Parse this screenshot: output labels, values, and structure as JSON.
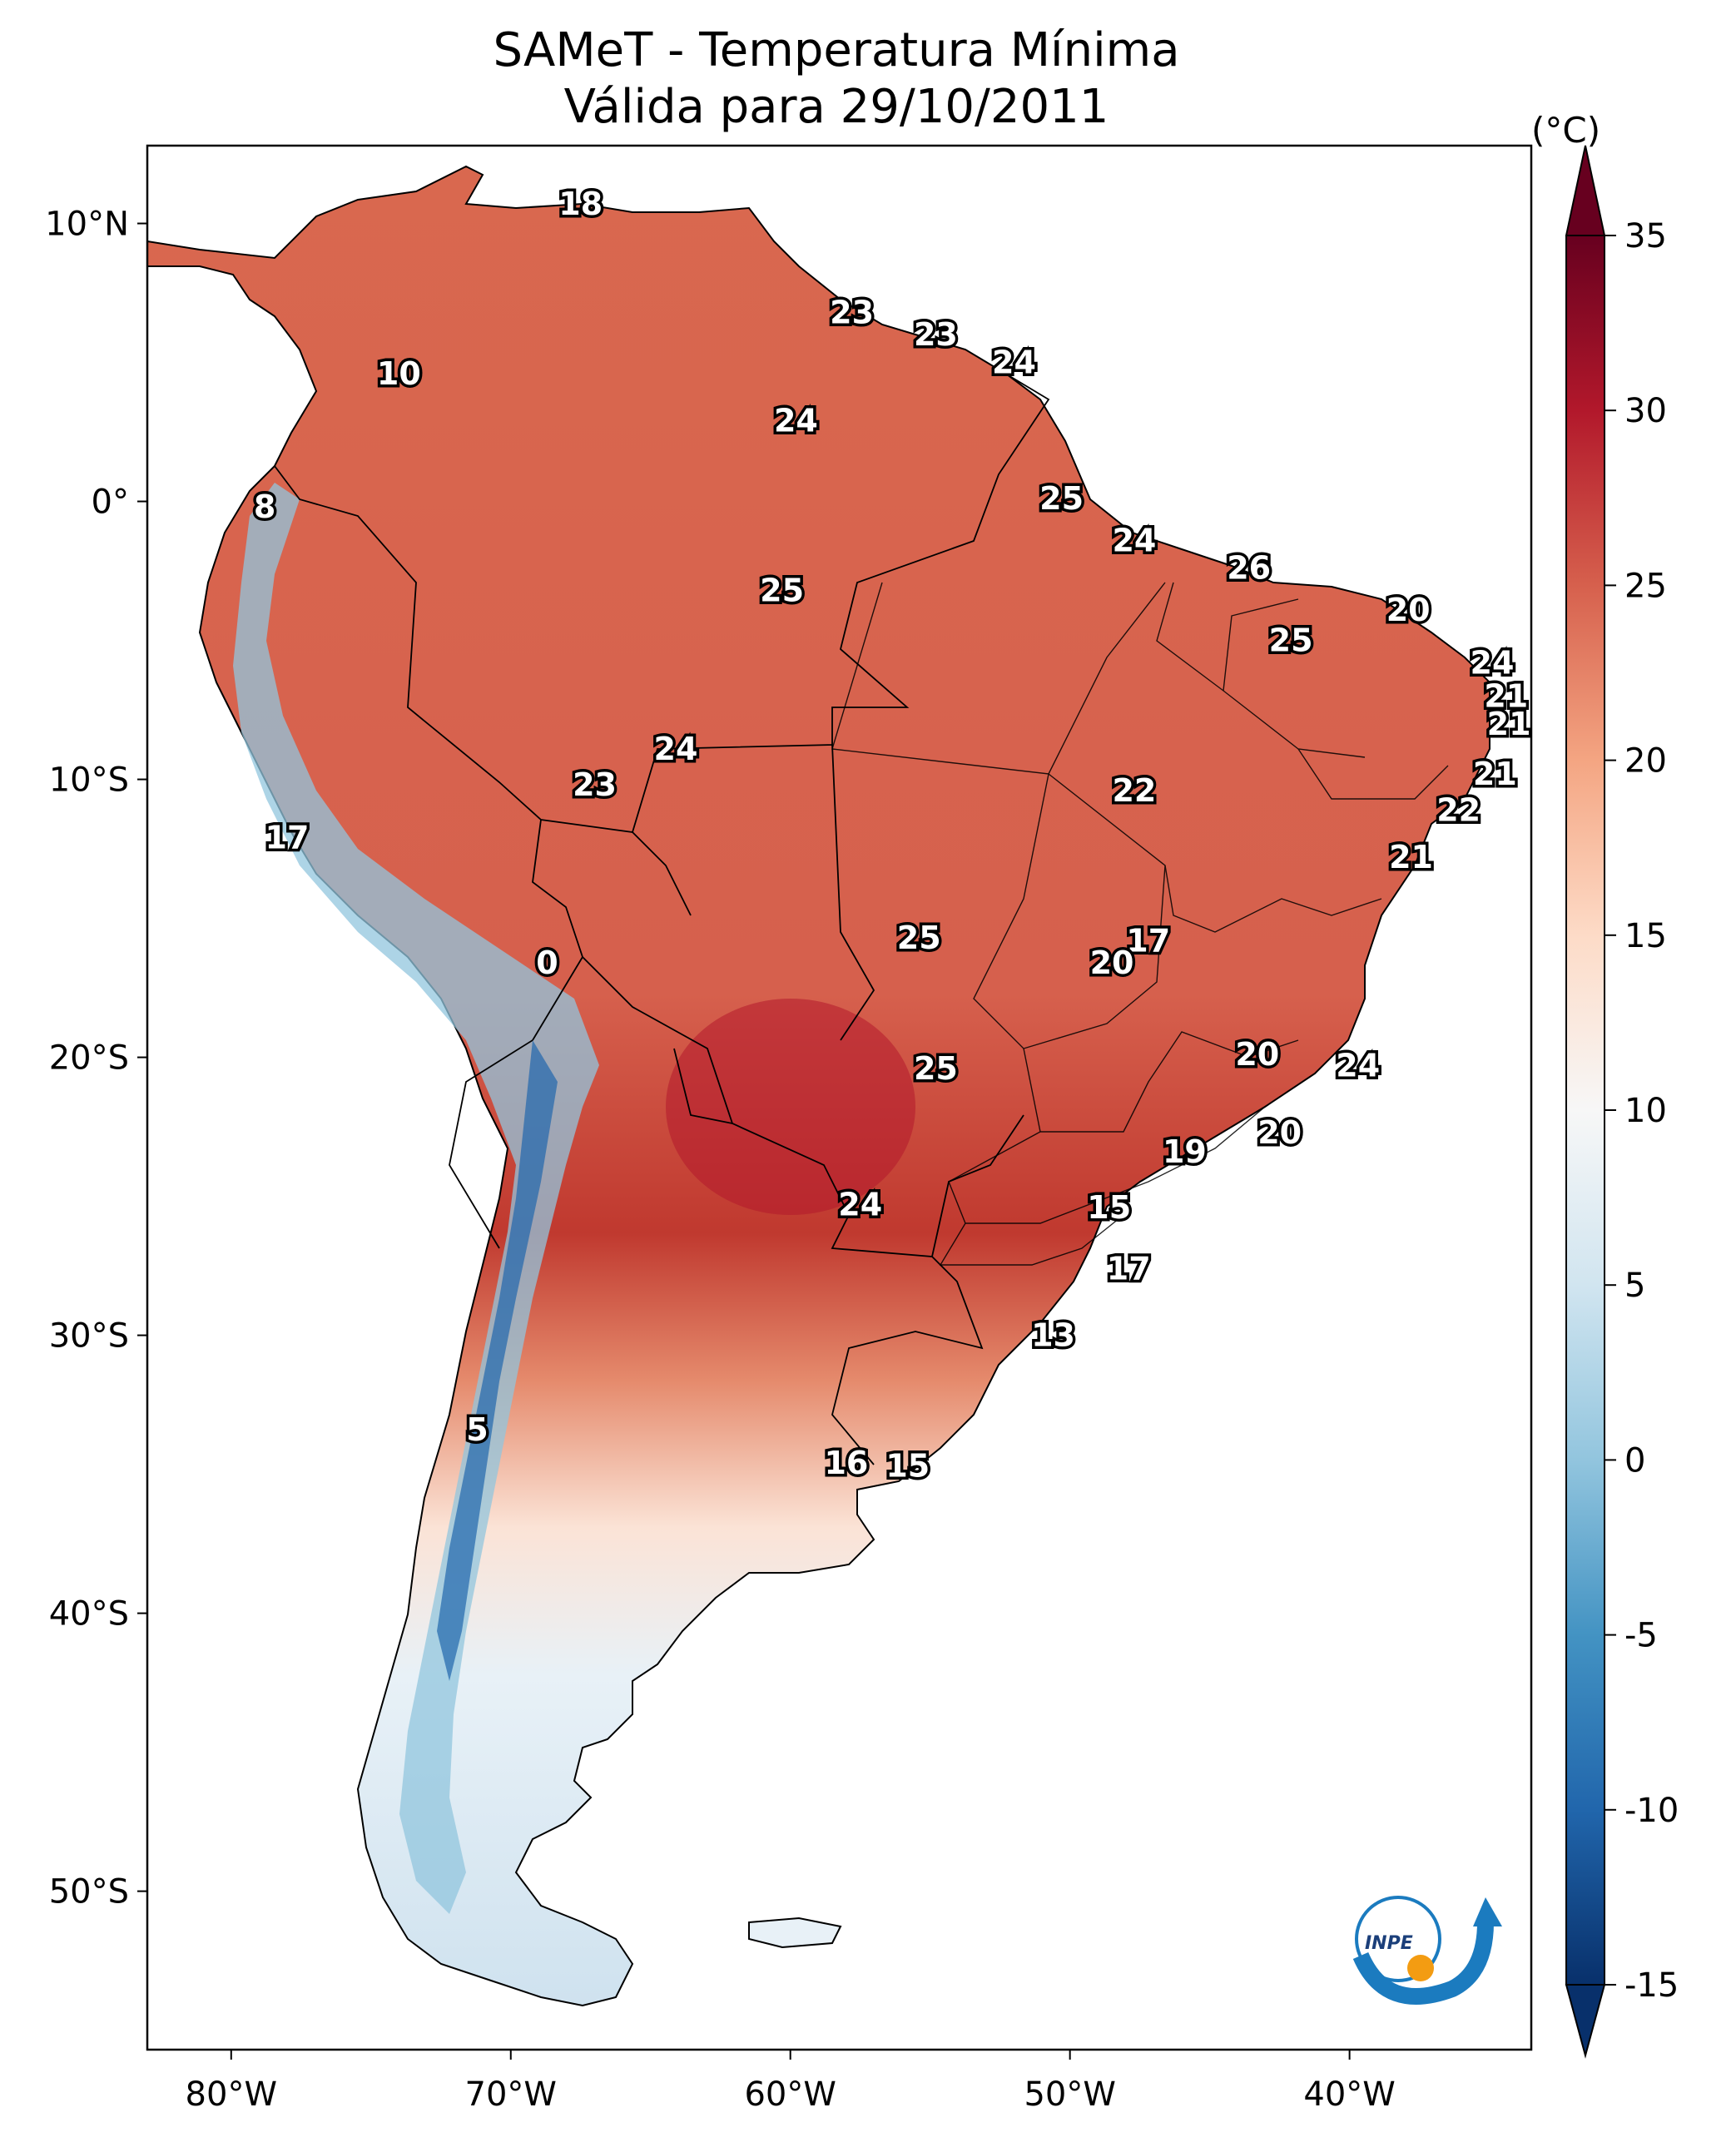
{
  "title": {
    "line1": "SAMeT - Temperatura Mínima",
    "line2": "Válida para 29/10/2011"
  },
  "colorbar": {
    "unit": "(°C)",
    "ticks": [
      "35",
      "30",
      "25",
      "20",
      "15",
      "10",
      "5",
      "0",
      "-5",
      "-10",
      "-15"
    ],
    "range": [
      -15,
      35
    ],
    "colors": [
      "#08306b",
      "#2166ac",
      "#4393c3",
      "#92c5de",
      "#d1e5f0",
      "#f7f7f7",
      "#fddbc7",
      "#f4a582",
      "#d6604d",
      "#b2182b",
      "#67001f"
    ]
  },
  "axes": {
    "lat_ticks": [
      "10°N",
      "0°",
      "10°S",
      "20°S",
      "30°S",
      "40°S",
      "50°S"
    ],
    "lon_ticks": [
      "80°W",
      "70°W",
      "60°W",
      "50°W",
      "40°W"
    ]
  },
  "labels": [
    {
      "v": "18",
      "lon": -67.5,
      "lat": 10.7
    },
    {
      "v": "10",
      "lon": -74.0,
      "lat": 4.6
    },
    {
      "v": "8",
      "lon": -78.8,
      "lat": -0.2
    },
    {
      "v": "23",
      "lon": -57.8,
      "lat": 6.8
    },
    {
      "v": "23",
      "lon": -54.8,
      "lat": 6.0
    },
    {
      "v": "24",
      "lon": -52.0,
      "lat": 5.0
    },
    {
      "v": "24",
      "lon": -59.8,
      "lat": 2.9
    },
    {
      "v": "25",
      "lon": -50.3,
      "lat": 0.1
    },
    {
      "v": "24",
      "lon": -47.7,
      "lat": -1.4
    },
    {
      "v": "26",
      "lon": -43.6,
      "lat": -2.4
    },
    {
      "v": "20",
      "lon": -37.9,
      "lat": -3.9
    },
    {
      "v": "25",
      "lon": -42.1,
      "lat": -5.0
    },
    {
      "v": "24",
      "lon": -34.9,
      "lat": -5.8
    },
    {
      "v": "21",
      "lon": -34.4,
      "lat": -7.0
    },
    {
      "v": "21",
      "lon": -34.3,
      "lat": -8.0
    },
    {
      "v": "25",
      "lon": -60.3,
      "lat": -3.2
    },
    {
      "v": "24",
      "lon": -64.1,
      "lat": -8.9
    },
    {
      "v": "23",
      "lon": -67.0,
      "lat": -10.2
    },
    {
      "v": "22",
      "lon": -47.7,
      "lat": -10.4
    },
    {
      "v": "21",
      "lon": -34.8,
      "lat": -9.8
    },
    {
      "v": "22",
      "lon": -36.1,
      "lat": -11.1
    },
    {
      "v": "21",
      "lon": -37.8,
      "lat": -12.8
    },
    {
      "v": "17",
      "lon": -78.0,
      "lat": -12.1
    },
    {
      "v": "0",
      "lon": -68.7,
      "lat": -16.6
    },
    {
      "v": "25",
      "lon": -55.4,
      "lat": -15.7
    },
    {
      "v": "17",
      "lon": -47.2,
      "lat": -15.8
    },
    {
      "v": "20",
      "lon": -48.5,
      "lat": -16.6
    },
    {
      "v": "20",
      "lon": -43.3,
      "lat": -19.9
    },
    {
      "v": "24",
      "lon": -39.7,
      "lat": -20.3
    },
    {
      "v": "25",
      "lon": -54.8,
      "lat": -20.4
    },
    {
      "v": "20",
      "lon": -42.5,
      "lat": -22.7
    },
    {
      "v": "19",
      "lon": -45.9,
      "lat": -23.4
    },
    {
      "v": "24",
      "lon": -57.5,
      "lat": -25.3
    },
    {
      "v": "15",
      "lon": -48.6,
      "lat": -25.4
    },
    {
      "v": "17",
      "lon": -47.9,
      "lat": -27.6
    },
    {
      "v": "13",
      "lon": -50.6,
      "lat": -30.0
    },
    {
      "v": "5",
      "lon": -71.2,
      "lat": -33.4
    },
    {
      "v": "16",
      "lon": -58.0,
      "lat": -34.6
    },
    {
      "v": "15",
      "lon": -55.8,
      "lat": -34.7
    }
  ]
}
